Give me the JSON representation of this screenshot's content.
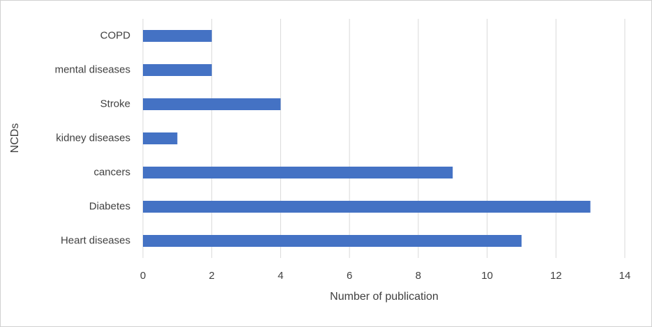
{
  "chart_data": {
    "type": "hbar",
    "categories": [
      "COPD",
      "mental diseases",
      "Stroke",
      "kidney diseases",
      "cancers",
      "Diabetes",
      "Heart diseases"
    ],
    "values": [
      2,
      2,
      4,
      1,
      9,
      13,
      11
    ],
    "color": "#4472c4",
    "xlabel": "Number of publication",
    "ylabel": "NCDs",
    "xlim": [
      0,
      14
    ],
    "xticks": [
      0,
      2,
      4,
      6,
      8,
      10,
      12,
      14
    ],
    "grid": true
  }
}
